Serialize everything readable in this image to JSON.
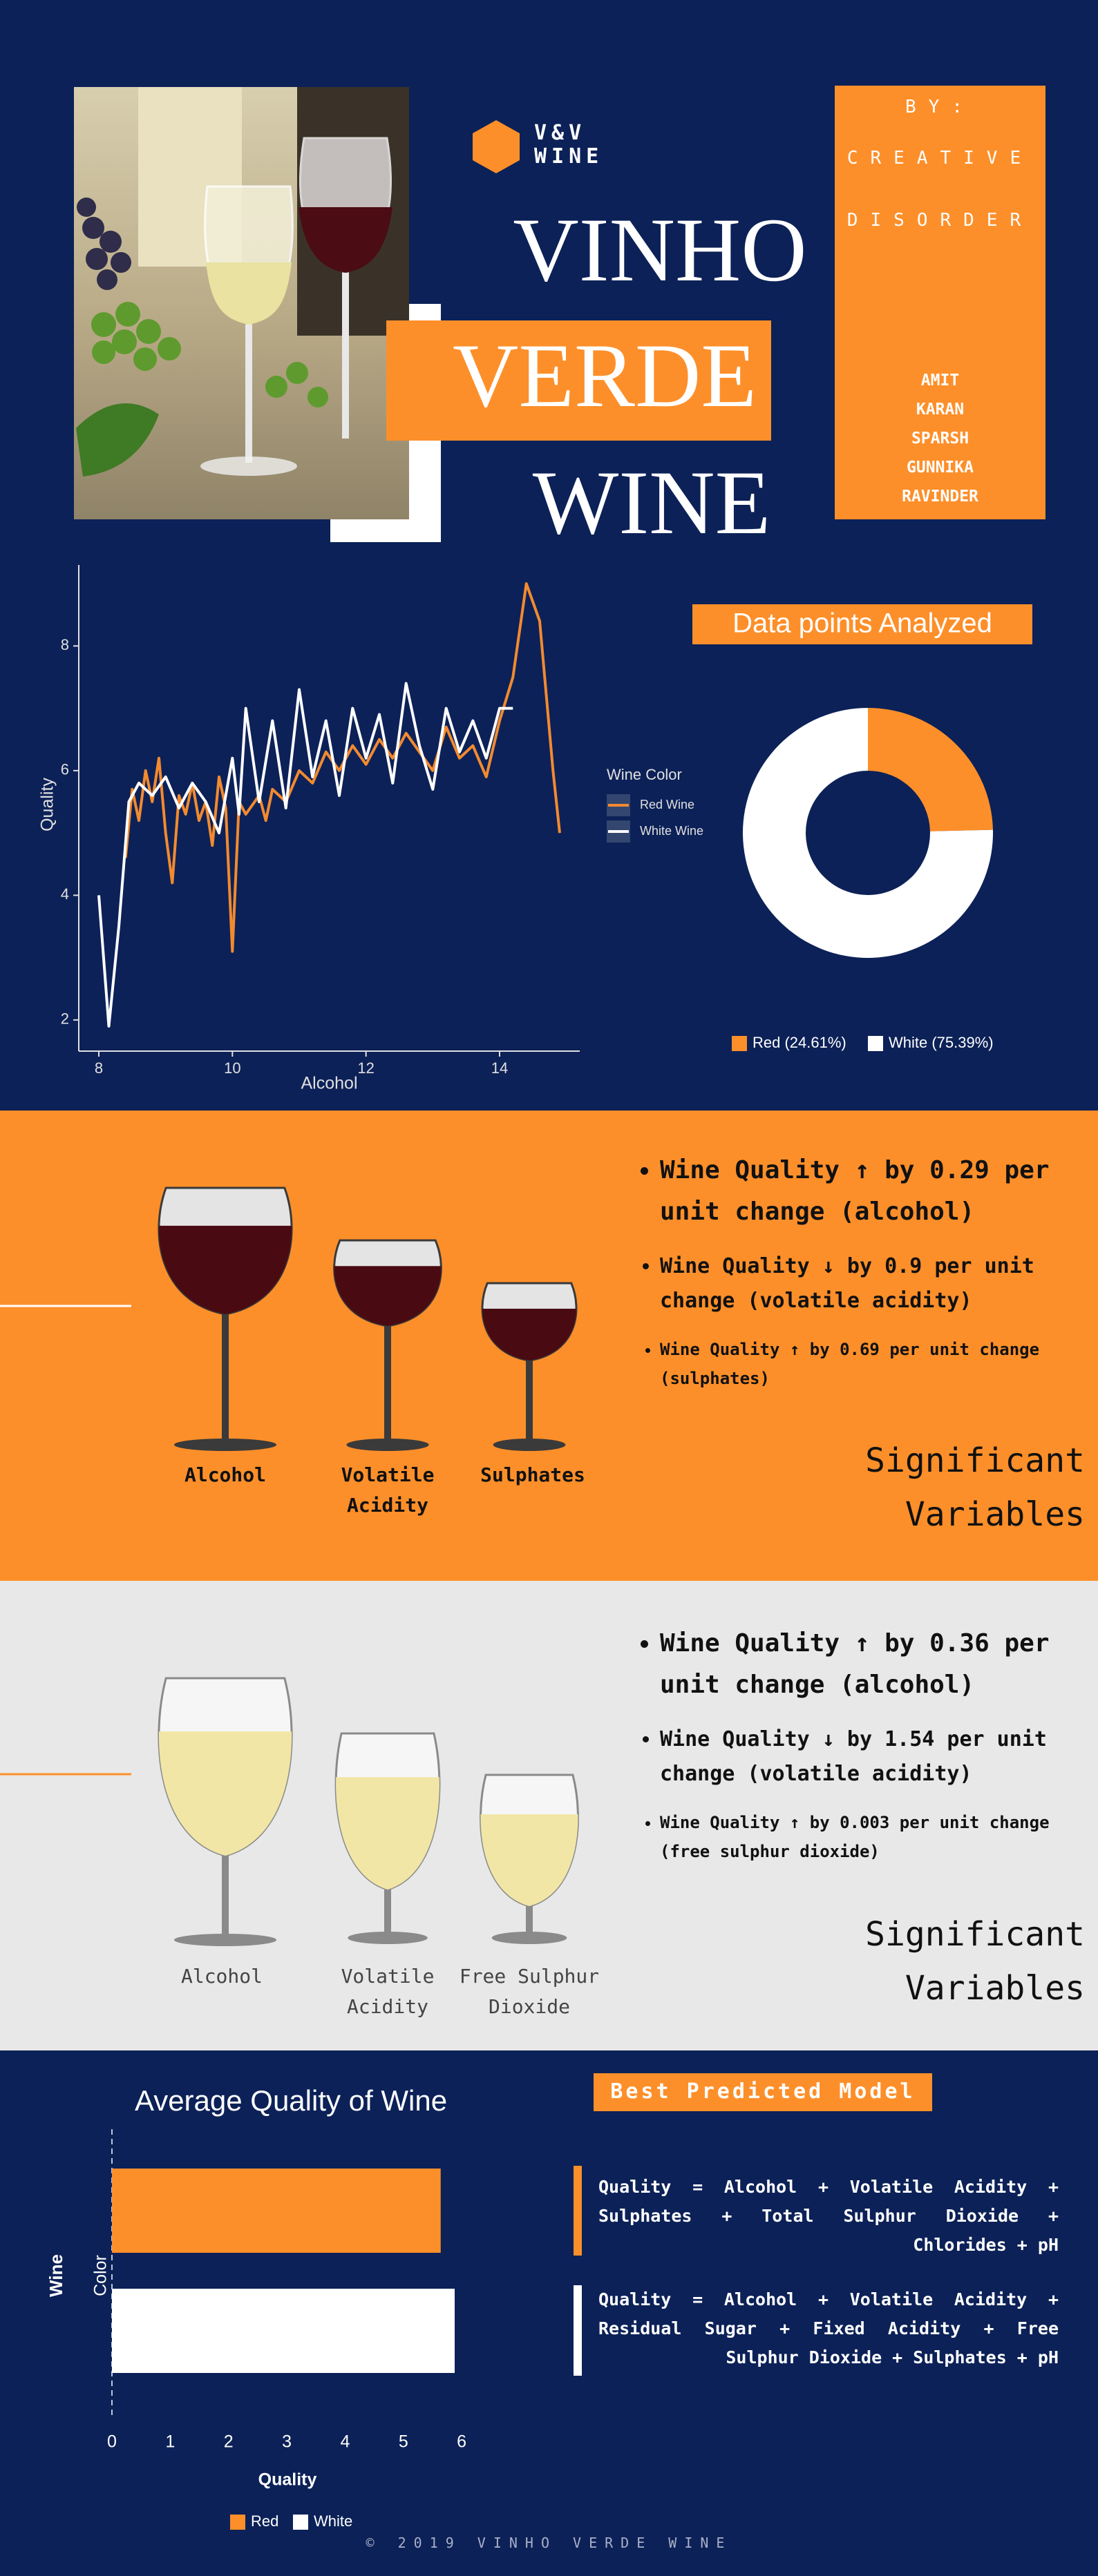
{
  "header": {
    "logo_lines": [
      "V&V",
      "WINE"
    ],
    "title_lines": [
      "VINHO",
      "VERDE",
      "WINE"
    ],
    "by": "BY:",
    "team": [
      "CREATIVE",
      "DISORDER"
    ],
    "members": [
      "AMIT",
      "KARAN",
      "SPARSH",
      "GUNNIKA",
      "RAVINDER"
    ]
  },
  "chart_data": [
    {
      "type": "line",
      "xlabel": "Alcohol",
      "ylabel": "Quality",
      "legend_title": "Wine Color",
      "xlim": [
        7.7,
        15.2
      ],
      "ylim": [
        1.5,
        9.3
      ],
      "xticks": [
        8,
        10,
        12,
        14
      ],
      "yticks": [
        2,
        4,
        6,
        8
      ],
      "grid": false,
      "series": [
        {
          "name": "Red Wine",
          "color": "#f28a30",
          "x": [
            8.4,
            8.5,
            8.6,
            8.7,
            8.8,
            8.9,
            9.0,
            9.1,
            9.2,
            9.3,
            9.4,
            9.5,
            9.6,
            9.7,
            9.8,
            9.9,
            10.0,
            10.1,
            10.2,
            10.4,
            10.5,
            10.6,
            10.8,
            11.0,
            11.2,
            11.4,
            11.6,
            11.8,
            12.0,
            12.2,
            12.4,
            12.6,
            12.8,
            13.0,
            13.2,
            13.4,
            13.6,
            13.8,
            14.0,
            14.2,
            14.4,
            14.6,
            14.8,
            14.9
          ],
          "values": [
            4.6,
            5.7,
            5.2,
            6.0,
            5.5,
            6.2,
            5.0,
            4.2,
            5.6,
            5.3,
            5.8,
            5.2,
            5.5,
            4.8,
            5.9,
            5.4,
            3.1,
            5.5,
            5.3,
            5.6,
            5.2,
            5.7,
            5.5,
            6.0,
            5.8,
            6.3,
            6.0,
            6.4,
            6.1,
            6.5,
            6.2,
            6.6,
            6.3,
            6.0,
            6.7,
            6.2,
            6.4,
            5.9,
            6.8,
            7.5,
            9.0,
            8.4,
            6.0,
            5.0
          ]
        },
        {
          "name": "White Wine",
          "color": "#ffffff",
          "x": [
            8.0,
            8.15,
            8.3,
            8.45,
            8.6,
            8.8,
            9.0,
            9.2,
            9.4,
            9.6,
            9.8,
            10.0,
            10.1,
            10.2,
            10.4,
            10.6,
            10.8,
            11.0,
            11.2,
            11.4,
            11.6,
            11.8,
            12.0,
            12.2,
            12.4,
            12.6,
            12.8,
            13.0,
            13.2,
            13.4,
            13.6,
            13.8,
            14.0,
            14.2
          ],
          "values": [
            4.0,
            1.9,
            3.5,
            5.5,
            5.8,
            5.6,
            5.9,
            5.4,
            5.8,
            5.5,
            5.0,
            6.2,
            5.3,
            7.0,
            5.5,
            6.8,
            5.4,
            7.3,
            5.9,
            6.8,
            5.6,
            7.0,
            6.2,
            6.9,
            5.8,
            7.4,
            6.4,
            5.7,
            7.0,
            6.3,
            6.8,
            6.2,
            7.0,
            7.0
          ]
        }
      ]
    },
    {
      "type": "pie",
      "title": "Data points Analyzed",
      "hole": true,
      "categories": [
        "Red",
        "White"
      ],
      "values": [
        24.61,
        75.39
      ],
      "colors": [
        "#fd8f2a",
        "#ffffff"
      ],
      "legend_labels": [
        "Red (24.61%)",
        "White (75.39%)"
      ],
      "legend": "bottom"
    },
    {
      "type": "bar",
      "orientation": "horizontal",
      "title": "Average Quality of Wine",
      "xlabel": "Quality",
      "ylabel": "Color",
      "group_label": "Wine",
      "categories": [
        null
      ],
      "xlim": [
        0,
        6.2
      ],
      "xticks": [
        0,
        1,
        2,
        3,
        4,
        5,
        6
      ],
      "legend": "bottom",
      "series": [
        {
          "name": "Red",
          "color": "#fd8f2a",
          "values": [
            5.64
          ]
        },
        {
          "name": "White",
          "color": "#ffffff",
          "values": [
            5.88
          ]
        }
      ]
    }
  ],
  "red_section": {
    "bullets": [
      "Wine Quality ↑ by 0.29 per unit change (alcohol)",
      "Wine Quality ↓ by 0.9 per unit change (volatile acidity)",
      "Wine Quality ↑ by 0.69 per unit change (sulphates)"
    ],
    "variables": [
      "Alcohol",
      "Volatile Acidity",
      "Sulphates"
    ],
    "heading": "Significant Variables"
  },
  "white_section": {
    "bullets": [
      "Wine Quality ↑ by 0.36 per unit change (alcohol)",
      "Wine Quality ↓ by 1.54 per unit change (volatile acidity)",
      "Wine Quality ↑ by 0.003 per unit change (free sulphur dioxide)"
    ],
    "variables": [
      "Alcohol",
      "Volatile Acidity",
      "Free Sulphur Dioxide"
    ],
    "heading": "Significant Variables"
  },
  "model": {
    "title": "Best Predicted Model",
    "formulas": [
      "Quality = Alcohol + Volatile Acidity + Sulphates + Total Sulphur Dioxide + Chlorides + pH",
      "Quality = Alcohol + Volatile Acidity + Residual Sugar + Fixed Acidity + Free Sulphur Dioxide + Sulphates + pH"
    ]
  },
  "footer": "© 2019 VINHO VERDE WINE"
}
